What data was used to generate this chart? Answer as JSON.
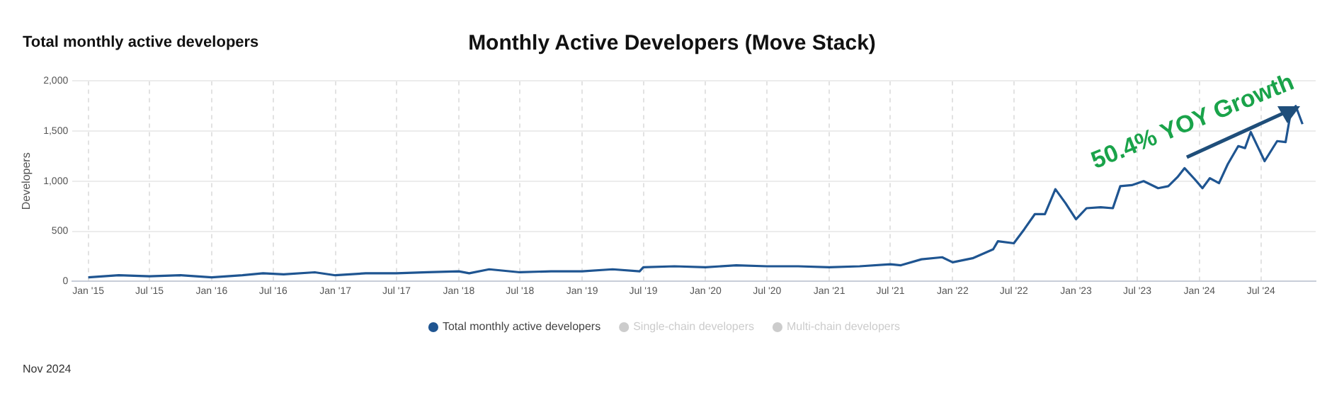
{
  "chart_data": {
    "type": "line",
    "title": "Monthly Active Developers (Move Stack)",
    "subtitle": "Total monthly active developers",
    "ylabel": "Developers",
    "annotations": [
      "50.4% YOY Growth",
      "Nov 2024"
    ],
    "xlim": [
      "2014-11-15",
      "2024-12-10"
    ],
    "xticks": [
      {
        "value": "2015-01",
        "label": "Jan '15"
      },
      {
        "value": "2015-07",
        "label": "Jul '15"
      },
      {
        "value": "2016-01",
        "label": "Jan '16"
      },
      {
        "value": "2016-07",
        "label": "Jul '16"
      },
      {
        "value": "2017-01",
        "label": "Jan '17"
      },
      {
        "value": "2017-07",
        "label": "Jul '17"
      },
      {
        "value": "2018-01",
        "label": "Jan '18"
      },
      {
        "value": "2018-07",
        "label": "Jul '18"
      },
      {
        "value": "2019-01",
        "label": "Jan '19"
      },
      {
        "value": "2019-07",
        "label": "Jul '19"
      },
      {
        "value": "2020-01",
        "label": "Jan '20"
      },
      {
        "value": "2020-07",
        "label": "Jul '20"
      },
      {
        "value": "2021-01",
        "label": "Jan '21"
      },
      {
        "value": "2021-07",
        "label": "Jul '21"
      },
      {
        "value": "2022-01",
        "label": "Jan '22"
      },
      {
        "value": "2022-07",
        "label": "Jul '22"
      },
      {
        "value": "2023-01",
        "label": "Jan '23"
      },
      {
        "value": "2023-07",
        "label": "Jul '23"
      },
      {
        "value": "2024-01",
        "label": "Jan '24"
      },
      {
        "value": "2024-07",
        "label": "Jul '24"
      }
    ],
    "ylim": [
      0,
      2000
    ],
    "yticks": [
      {
        "value": 0,
        "label": "0"
      },
      {
        "value": 500,
        "label": "500"
      },
      {
        "value": 1000,
        "label": "1,000"
      },
      {
        "value": 1500,
        "label": "1,500"
      },
      {
        "value": 2000,
        "label": "2,000"
      }
    ],
    "grid": true,
    "legend": "bottom",
    "marker": "none",
    "line_style": "solid",
    "x": [
      "2015-01",
      "2015-04",
      "2015-07",
      "2015-10",
      "2016-01",
      "2016-04",
      "2016-06",
      "2016-08",
      "2016-11",
      "2017-01",
      "2017-04",
      "2017-07",
      "2017-10",
      "2018-01",
      "2018-02",
      "2018-04",
      "2018-07",
      "2018-10",
      "2019-01",
      "2019-04",
      "2019-06-20",
      "2019-07",
      "2019-10",
      "2020-01",
      "2020-04",
      "2020-07",
      "2020-10",
      "2021-01",
      "2021-04",
      "2021-07",
      "2021-08",
      "2021-10",
      "2021-12",
      "2022-01",
      "2022-03",
      "2022-05",
      "2022-05-15",
      "2022-07",
      "2022-08",
      "2022-09",
      "2022-10",
      "2022-11",
      "2022-12",
      "2023-01",
      "2023-02",
      "2023-03-15",
      "2023-04-20",
      "2023-05-12",
      "2023-06-15",
      "2023-07-20",
      "2023-09",
      "2023-10",
      "2023-10-28",
      "2023-11-18",
      "2023-12-18",
      "2024-01-10",
      "2024-02",
      "2024-02-28",
      "2024-03-25",
      "2024-04-25",
      "2024-05-15",
      "2024-06",
      "2024-07-12",
      "2024-08-18",
      "2024-09-12",
      "2024-09-28",
      "2024-10-12",
      "2024-11"
    ],
    "series": [
      {
        "name": "Total monthly active developers",
        "color": "#1f5591",
        "values": [
          40,
          60,
          50,
          60,
          40,
          60,
          80,
          70,
          90,
          60,
          80,
          80,
          90,
          100,
          80,
          120,
          90,
          100,
          100,
          120,
          100,
          140,
          150,
          140,
          160,
          150,
          150,
          140,
          150,
          170,
          160,
          220,
          240,
          190,
          230,
          320,
          400,
          380,
          520,
          670,
          670,
          920,
          780,
          620,
          730,
          740,
          730,
          950,
          960,
          1000,
          930,
          950,
          1040,
          1130,
          1020,
          930,
          1030,
          980,
          1170,
          1350,
          1330,
          1490,
          1200,
          1400,
          1390,
          1700,
          1750,
          1570
        ]
      },
      {
        "name": "Single-chain developers",
        "color": "#cccccc",
        "values": [
          null,
          null,
          null,
          null,
          null,
          null,
          null,
          null,
          null,
          null,
          null,
          null,
          null,
          null,
          null,
          null,
          null,
          null,
          null,
          null,
          null,
          null,
          null,
          null,
          null,
          null,
          null,
          null,
          null,
          null,
          null,
          null,
          null,
          null,
          null,
          null,
          null,
          null,
          null,
          null,
          null,
          null,
          null,
          null,
          null,
          null,
          null,
          null,
          null,
          null,
          null,
          null,
          null,
          null,
          null,
          null,
          null,
          null,
          null,
          null,
          null,
          null,
          null,
          null,
          null,
          null,
          null,
          null
        ]
      },
      {
        "name": "Multi-chain developers",
        "color": "#cccccc",
        "values": [
          null,
          null,
          null,
          null,
          null,
          null,
          null,
          null,
          null,
          null,
          null,
          null,
          null,
          null,
          null,
          null,
          null,
          null,
          null,
          null,
          null,
          null,
          null,
          null,
          null,
          null,
          null,
          null,
          null,
          null,
          null,
          null,
          null,
          null,
          null,
          null,
          null,
          null,
          null,
          null,
          null,
          null,
          null,
          null,
          null,
          null,
          null,
          null,
          null,
          null,
          null,
          null,
          null,
          null,
          null,
          null,
          null,
          null,
          null,
          null,
          null,
          null,
          null,
          null,
          null,
          null,
          null,
          null
        ]
      }
    ]
  }
}
